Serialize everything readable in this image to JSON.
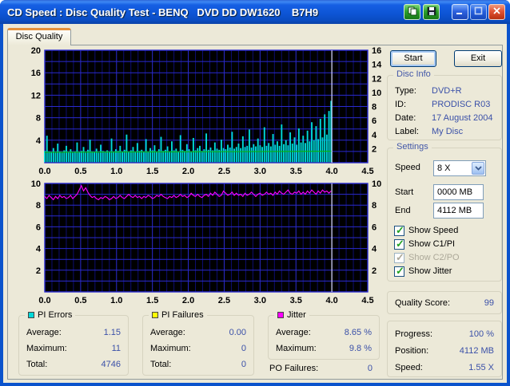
{
  "window": {
    "title": "CD Speed : Disc Quality Test - BENQ   DVD DD DW1620    B7H9",
    "control_icons": [
      "copy-icon",
      "save-icon",
      "minimize-icon",
      "maximize-icon",
      "close-icon"
    ]
  },
  "tab": {
    "label": "Disc Quality"
  },
  "toolbar": {
    "start_label": "Start",
    "exit_label": "Exit"
  },
  "disc_info": {
    "title": "Disc Info",
    "rows": [
      {
        "label": "Type:",
        "value": "DVD+R"
      },
      {
        "label": "ID:",
        "value": "PRODISC R03"
      },
      {
        "label": "Date:",
        "value": "17 August 2004"
      },
      {
        "label": "Label:",
        "value": "My Disc"
      }
    ]
  },
  "settings": {
    "title": "Settings",
    "speed_label": "Speed",
    "speed_value": "8 X",
    "start_label": "Start",
    "start_value": "0000 MB",
    "end_label": "End",
    "end_value": "4112 MB",
    "checkboxes": [
      {
        "label": "Show Speed",
        "checked": true,
        "enabled": true
      },
      {
        "label": "Show C1/PI",
        "checked": true,
        "enabled": true
      },
      {
        "label": "Show C2/PO",
        "checked": true,
        "enabled": false
      },
      {
        "label": "Show Jitter",
        "checked": true,
        "enabled": true
      }
    ]
  },
  "quality": {
    "label": "Quality Score:",
    "value": "99"
  },
  "status": {
    "rows": [
      {
        "label": "Progress:",
        "value": "100 %"
      },
      {
        "label": "Position:",
        "value": "4112 MB"
      },
      {
        "label": "Speed:",
        "value": "1.55 X"
      }
    ]
  },
  "stats": [
    {
      "title": "PI Errors",
      "color": "#00D9D9",
      "rows": [
        [
          "Average:",
          "1.15"
        ],
        [
          "Maximum:",
          "11"
        ],
        [
          "Total:",
          "4746"
        ]
      ]
    },
    {
      "title": "PI Failures",
      "color": "#FFFF00",
      "rows": [
        [
          "Average:",
          "0.00"
        ],
        [
          "Maximum:",
          "0"
        ],
        [
          "Total:",
          "0"
        ]
      ]
    },
    {
      "title": "Jitter",
      "color": "#FF00FF",
      "rows": [
        [
          "Average:",
          "8.65 %"
        ],
        [
          "Maximum:",
          "9.8 %"
        ]
      ]
    }
  ],
  "po_failures": {
    "label": "PO Failures:",
    "value": "0"
  },
  "colors": {
    "plot_bg": "#000000",
    "grid_major": "#2B2BD0",
    "grid_minor": "#0D0D72",
    "cursor": "#DCDCFF",
    "axis_text": "#000000"
  },
  "chart_data": [
    {
      "type": "bar",
      "title": "PI Errors vs position (GB) with read speed overlay",
      "x_range": [
        0,
        4.5
      ],
      "x_step": 0.03,
      "cursor_x": 4.0,
      "x_ticks": [
        "0.0",
        "0.5",
        "1.0",
        "1.5",
        "2.0",
        "2.5",
        "3.0",
        "3.5",
        "4.0",
        "4.5"
      ],
      "y_left": {
        "range": [
          0,
          20
        ],
        "ticks": [
          4,
          8,
          12,
          16,
          20
        ],
        "grid_step": 2
      },
      "y_right": {
        "range": [
          0,
          16
        ],
        "ticks": [
          2,
          4,
          6,
          8,
          10,
          12,
          14,
          16
        ]
      },
      "series": [
        {
          "name": "PI Errors",
          "style": "bars",
          "scale": "left",
          "color": "#00D9D9",
          "values": [
            2.1,
            4.8,
            2.0,
            1.9,
            2.6,
            1.8,
            3.4,
            2.0,
            1.8,
            2.2,
            3.0,
            1.9,
            2.4,
            1.8,
            2.0,
            3.6,
            1.9,
            2.1,
            2.8,
            1.8,
            2.3,
            4.1,
            2.0,
            1.9,
            2.5,
            1.8,
            3.2,
            2.1,
            1.9,
            2.2,
            2.0,
            4.3,
            1.9,
            2.4,
            2.1,
            3.0,
            2.0,
            2.3,
            5.0,
            2.0,
            2.2,
            2.8,
            1.9,
            3.5,
            2.1,
            2.3,
            2.0,
            4.2,
            1.9,
            2.6,
            2.2,
            3.1,
            2.0,
            2.4,
            4.6,
            2.1,
            2.3,
            2.9,
            2.0,
            3.8,
            2.2,
            2.5,
            2.0,
            4.9,
            2.3,
            2.1,
            3.3,
            2.4,
            2.0,
            4.4,
            2.2,
            2.6,
            3.0,
            2.1,
            2.4,
            5.2,
            2.3,
            2.7,
            2.2,
            3.6,
            2.5,
            2.3,
            4.1,
            2.6,
            2.4,
            3.2,
            2.7,
            5.5,
            2.5,
            2.8,
            3.4,
            2.6,
            4.7,
            2.8,
            3.0,
            5.9,
            2.7,
            3.3,
            2.9,
            4.3,
            3.1,
            2.8,
            6.3,
            3.0,
            3.5,
            2.9,
            5.1,
            3.2,
            3.8,
            3.0,
            6.8,
            3.3,
            4.0,
            3.1,
            5.4,
            3.4,
            4.5,
            3.2,
            6.1,
            3.6,
            4.8,
            3.5,
            5.7,
            3.8,
            7.2,
            4.0,
            6.5,
            4.2,
            7.8,
            4.5,
            8.6,
            5.0,
            9.2,
            11.0
          ]
        },
        {
          "name": "Speed",
          "style": "line",
          "scale": "right",
          "color": "#00B800",
          "points": [
            [
              0,
              1.5
            ],
            [
              2.0,
              1.56
            ],
            [
              4.0,
              1.62
            ]
          ]
        }
      ]
    },
    {
      "type": "line",
      "title": "Jitter (%) vs position (GB)",
      "x_range": [
        0,
        4.5
      ],
      "x_step": 0.03,
      "cursor_x": 4.0,
      "x_ticks": [
        "0.0",
        "0.5",
        "1.0",
        "1.5",
        "2.0",
        "2.5",
        "3.0",
        "3.5",
        "4.0",
        "4.5"
      ],
      "y_left": {
        "range": [
          0,
          10
        ],
        "ticks": [
          2,
          4,
          6,
          8,
          10
        ],
        "grid_step": 1
      },
      "y_right": {
        "range": [
          0,
          10
        ],
        "ticks": [
          2,
          4,
          6,
          8,
          10
        ]
      },
      "series": [
        {
          "name": "Jitter",
          "style": "line",
          "scale": "left",
          "color": "#FF00FF",
          "values": [
            8.8,
            8.6,
            8.9,
            8.7,
            8.5,
            8.8,
            8.6,
            8.9,
            8.7,
            8.8,
            8.6,
            8.7,
            8.9,
            8.6,
            8.8,
            9.0,
            9.4,
            9.8,
            9.3,
            9.6,
            9.2,
            8.9,
            8.7,
            8.8,
            8.6,
            8.5,
            8.7,
            8.6,
            8.8,
            8.7,
            8.5,
            8.6,
            8.8,
            8.6,
            8.7,
            8.9,
            8.7,
            8.6,
            8.8,
            9.0,
            8.8,
            8.7,
            8.9,
            8.7,
            8.8,
            8.6,
            8.8,
            8.7,
            8.9,
            8.8,
            8.6,
            8.7,
            8.9,
            8.8,
            9.0,
            8.8,
            8.7,
            8.6,
            8.8,
            8.7,
            8.9,
            8.7,
            8.8,
            9.0,
            8.8,
            8.9,
            8.7,
            8.8,
            9.1,
            8.9,
            8.8,
            9.0,
            8.8,
            8.7,
            8.9,
            9.0,
            8.8,
            9.1,
            8.9,
            9.2,
            9.0,
            8.8,
            8.9,
            9.3,
            9.1,
            8.9,
            9.0,
            9.2,
            8.9,
            9.1,
            8.9,
            9.0,
            8.8,
            9.1,
            8.9,
            9.0,
            9.2,
            9.0,
            8.8,
            9.0,
            9.1,
            8.9,
            9.0,
            9.2,
            9.0,
            9.1,
            8.9,
            9.2,
            9.0,
            9.3,
            9.1,
            9.0,
            9.2,
            9.4,
            9.1,
            9.0,
            9.2,
            9.1,
            9.3,
            9.0,
            9.2,
            9.0,
            9.3,
            9.1,
            9.4,
            9.2,
            9.0,
            9.3,
            9.1,
            9.4,
            9.2,
            9.3,
            9.1,
            9.3
          ]
        }
      ]
    }
  ]
}
